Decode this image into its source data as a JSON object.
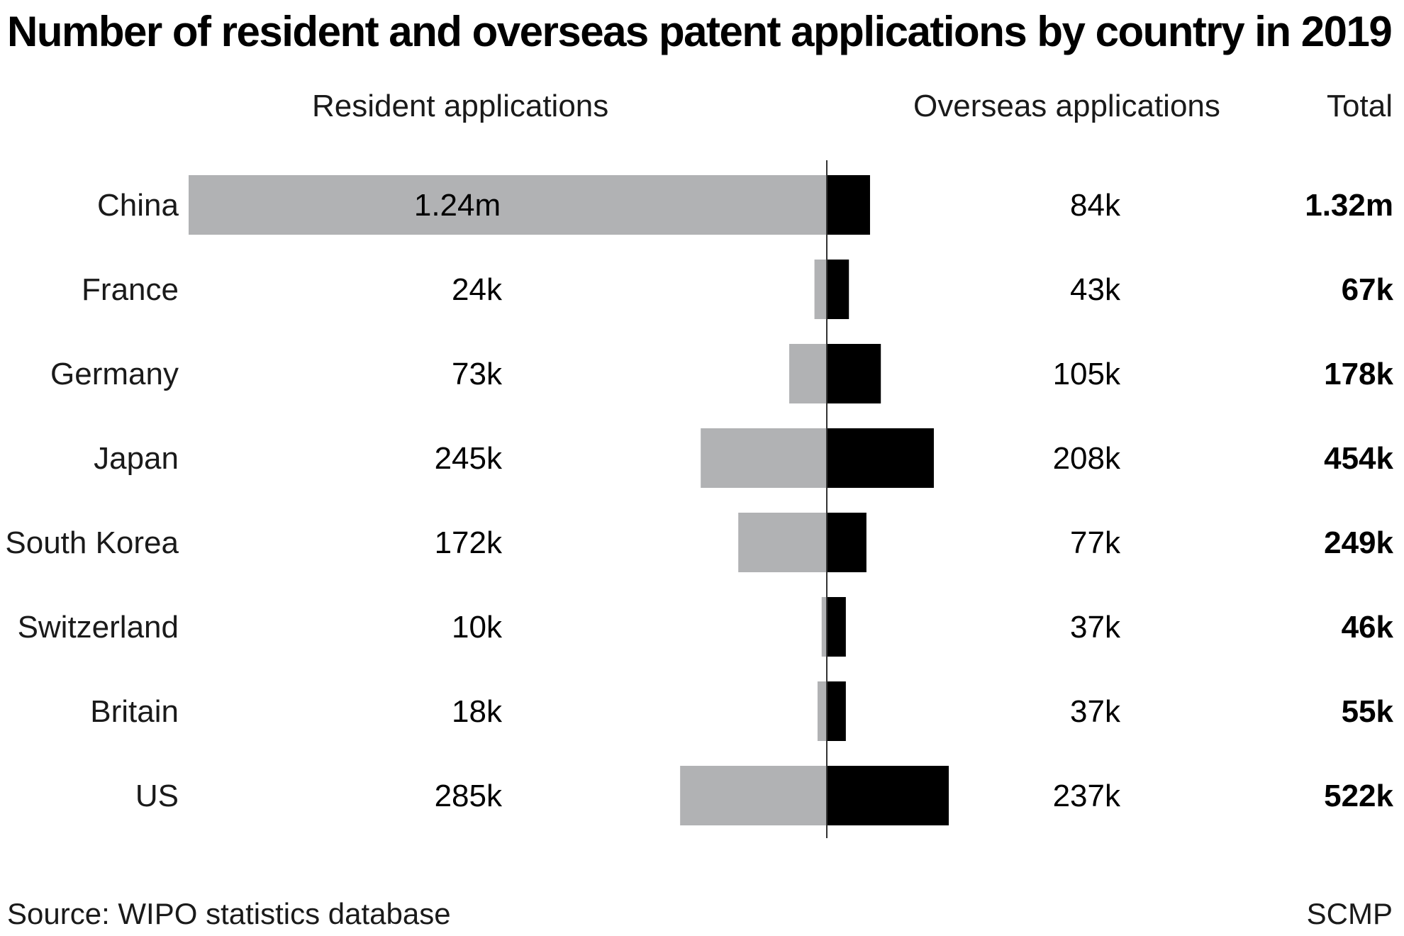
{
  "title": "Number of resident and overseas patent applications by country in 2019",
  "columns": {
    "resident": "Resident applications",
    "overseas": "Overseas applications",
    "total": "Total"
  },
  "footer": {
    "source": "Source: WIPO statistics database",
    "brand": "SCMP"
  },
  "colors": {
    "resident": "#b1b2b4",
    "overseas": "#000000",
    "axis": "#333333"
  },
  "chart_data": {
    "type": "bar",
    "categories": [
      "China",
      "France",
      "Germany",
      "Japan",
      "South Korea",
      "Switzerland",
      "Britain",
      "US"
    ],
    "series": [
      {
        "name": "Resident applications",
        "values": [
          1240000,
          24000,
          73000,
          245000,
          172000,
          10000,
          18000,
          285000
        ],
        "labels": [
          "1.24m",
          "24k",
          "73k",
          "245k",
          "172k",
          "10k",
          "18k",
          "285k"
        ]
      },
      {
        "name": "Overseas applications",
        "values": [
          84000,
          43000,
          105000,
          208000,
          77000,
          37000,
          37000,
          237000
        ],
        "labels": [
          "84k",
          "43k",
          "105k",
          "208k",
          "77k",
          "37k",
          "37k",
          "237k"
        ]
      }
    ],
    "totals": {
      "values": [
        1320000,
        67000,
        178000,
        454000,
        249000,
        46000,
        55000,
        522000
      ],
      "labels": [
        "1.32m",
        "67k",
        "178k",
        "454k",
        "249k",
        "46k",
        "55k",
        "522k"
      ]
    },
    "legend": "none"
  }
}
